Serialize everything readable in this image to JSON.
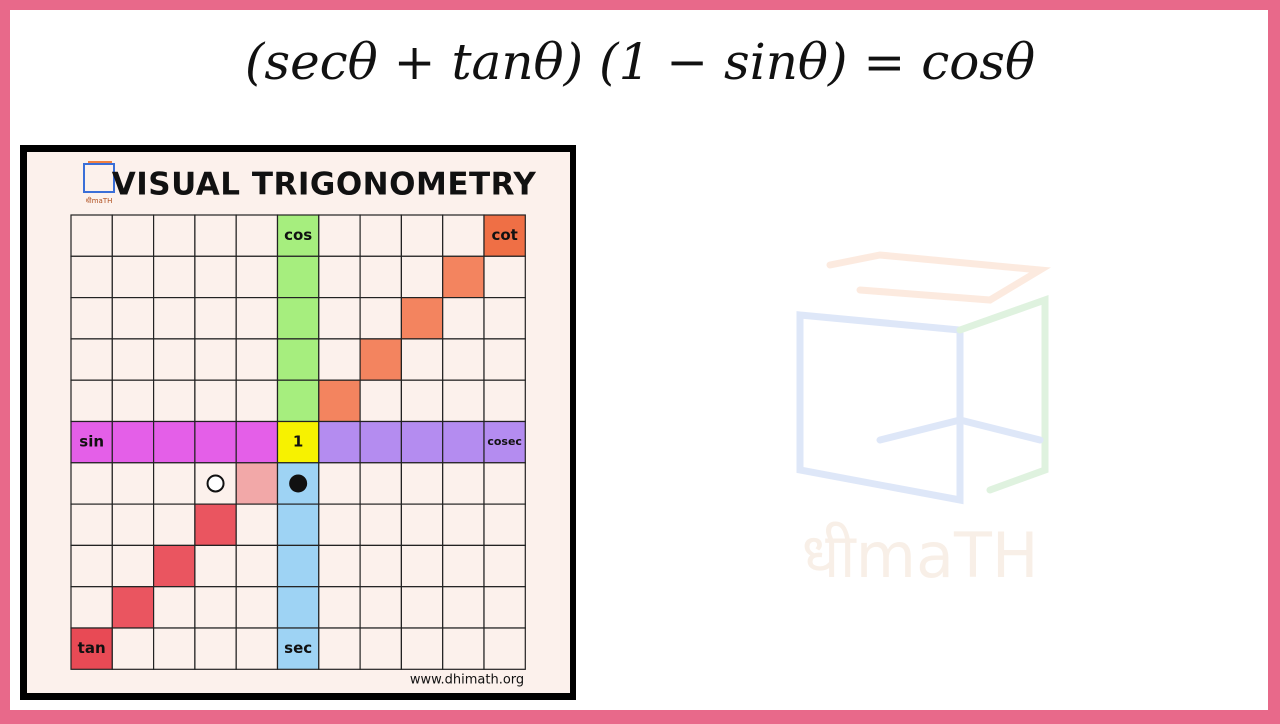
{
  "equation": "(secθ + tanθ) (1 − sinθ) = cosθ",
  "board": {
    "title": "VISUAL TRIGONOMETRY",
    "logo": "धीmaTH",
    "url": "www.dhimath.org",
    "labels": {
      "cos": "cos",
      "cot": "cot",
      "sin": "sin",
      "one": "1",
      "cosec": "cosec",
      "tan": "tan",
      "sec": "sec"
    }
  }
}
